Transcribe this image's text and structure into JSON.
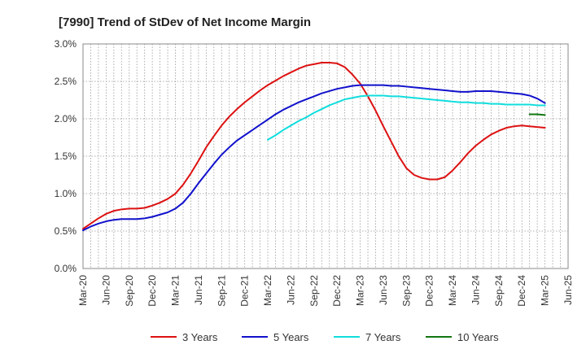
{
  "chart_data": {
    "type": "line",
    "title": "[7990]  Trend of StDev of Net Income Margin",
    "xlabel": "",
    "ylabel": "",
    "x_ticks": [
      "Mar-20",
      "Jun-20",
      "Sep-20",
      "Dec-20",
      "Mar-21",
      "Jun-21",
      "Sep-21",
      "Dec-21",
      "Mar-22",
      "Jun-22",
      "Sep-22",
      "Dec-22",
      "Mar-23",
      "Jun-23",
      "Sep-23",
      "Dec-23",
      "Mar-24",
      "Jun-24",
      "Sep-24",
      "Dec-24",
      "Mar-25",
      "Jun-25"
    ],
    "y_ticks": [
      "0.0%",
      "0.5%",
      "1.0%",
      "1.5%",
      "2.0%",
      "2.5%",
      "3.0%"
    ],
    "ylim": [
      0,
      3.0
    ],
    "grid": true,
    "legend_position": "bottom",
    "series": [
      {
        "name": "3 Years",
        "color": "#dd1111",
        "x": [
          "2020-03",
          "2020-04",
          "2020-05",
          "2020-06",
          "2020-07",
          "2020-08",
          "2020-09",
          "2020-10",
          "2020-11",
          "2020-12",
          "2021-01",
          "2021-02",
          "2021-03",
          "2021-04",
          "2021-05",
          "2021-06",
          "2021-07",
          "2021-08",
          "2021-09",
          "2021-10",
          "2021-11",
          "2021-12",
          "2022-01",
          "2022-02",
          "2022-03",
          "2022-04",
          "2022-05",
          "2022-06",
          "2022-07",
          "2022-08",
          "2022-09",
          "2022-10",
          "2022-11",
          "2022-12",
          "2023-01",
          "2023-02",
          "2023-03",
          "2023-04",
          "2023-05",
          "2023-06",
          "2023-07",
          "2023-08",
          "2023-09",
          "2023-10",
          "2023-11",
          "2023-12",
          "2024-01",
          "2024-02",
          "2024-03",
          "2024-04",
          "2024-05",
          "2024-06",
          "2024-07",
          "2024-08",
          "2024-09",
          "2024-10",
          "2024-11",
          "2024-12",
          "2025-01",
          "2025-02",
          "2025-03"
        ],
        "values": [
          0.53,
          0.6,
          0.67,
          0.73,
          0.77,
          0.79,
          0.8,
          0.8,
          0.81,
          0.84,
          0.88,
          0.93,
          1.0,
          1.12,
          1.27,
          1.44,
          1.62,
          1.77,
          1.91,
          2.03,
          2.13,
          2.22,
          2.3,
          2.38,
          2.45,
          2.51,
          2.57,
          2.62,
          2.67,
          2.71,
          2.73,
          2.75,
          2.75,
          2.74,
          2.69,
          2.59,
          2.47,
          2.3,
          2.11,
          1.9,
          1.7,
          1.5,
          1.34,
          1.25,
          1.21,
          1.19,
          1.19,
          1.22,
          1.31,
          1.42,
          1.54,
          1.64,
          1.72,
          1.79,
          1.84,
          1.88,
          1.9,
          1.91,
          1.9,
          1.89,
          1.88
        ]
      },
      {
        "name": "5 Years",
        "color": "#1111cc",
        "x": [
          "2020-03",
          "2020-04",
          "2020-05",
          "2020-06",
          "2020-07",
          "2020-08",
          "2020-09",
          "2020-10",
          "2020-11",
          "2020-12",
          "2021-01",
          "2021-02",
          "2021-03",
          "2021-04",
          "2021-05",
          "2021-06",
          "2021-07",
          "2021-08",
          "2021-09",
          "2021-10",
          "2021-11",
          "2021-12",
          "2022-01",
          "2022-02",
          "2022-03",
          "2022-04",
          "2022-05",
          "2022-06",
          "2022-07",
          "2022-08",
          "2022-09",
          "2022-10",
          "2022-11",
          "2022-12",
          "2023-01",
          "2023-02",
          "2023-03",
          "2023-04",
          "2023-05",
          "2023-06",
          "2023-07",
          "2023-08",
          "2023-09",
          "2023-10",
          "2023-11",
          "2023-12",
          "2024-01",
          "2024-02",
          "2024-03",
          "2024-04",
          "2024-05",
          "2024-06",
          "2024-07",
          "2024-08",
          "2024-09",
          "2024-10",
          "2024-11",
          "2024-12",
          "2025-01",
          "2025-02",
          "2025-03"
        ],
        "values": [
          0.51,
          0.56,
          0.6,
          0.63,
          0.65,
          0.66,
          0.66,
          0.66,
          0.67,
          0.69,
          0.72,
          0.75,
          0.8,
          0.88,
          1.0,
          1.14,
          1.27,
          1.4,
          1.52,
          1.62,
          1.71,
          1.78,
          1.85,
          1.92,
          1.99,
          2.06,
          2.12,
          2.17,
          2.22,
          2.26,
          2.3,
          2.34,
          2.37,
          2.4,
          2.42,
          2.44,
          2.45,
          2.45,
          2.45,
          2.45,
          2.44,
          2.44,
          2.43,
          2.42,
          2.41,
          2.4,
          2.39,
          2.38,
          2.37,
          2.36,
          2.36,
          2.37,
          2.37,
          2.37,
          2.36,
          2.35,
          2.34,
          2.33,
          2.31,
          2.27,
          2.21
        ]
      },
      {
        "name": "7 Years",
        "color": "#11dddd",
        "x": [
          "2022-03",
          "2022-04",
          "2022-05",
          "2022-06",
          "2022-07",
          "2022-08",
          "2022-09",
          "2022-10",
          "2022-11",
          "2022-12",
          "2023-01",
          "2023-02",
          "2023-03",
          "2023-04",
          "2023-05",
          "2023-06",
          "2023-07",
          "2023-08",
          "2023-09",
          "2023-10",
          "2023-11",
          "2023-12",
          "2024-01",
          "2024-02",
          "2024-03",
          "2024-04",
          "2024-05",
          "2024-06",
          "2024-07",
          "2024-08",
          "2024-09",
          "2024-10",
          "2024-11",
          "2024-12",
          "2025-01",
          "2025-02",
          "2025-03"
        ],
        "values": [
          1.72,
          1.78,
          1.85,
          1.91,
          1.97,
          2.02,
          2.08,
          2.13,
          2.18,
          2.22,
          2.26,
          2.28,
          2.3,
          2.31,
          2.31,
          2.31,
          2.3,
          2.3,
          2.29,
          2.28,
          2.27,
          2.26,
          2.25,
          2.24,
          2.23,
          2.22,
          2.22,
          2.21,
          2.21,
          2.2,
          2.2,
          2.19,
          2.19,
          2.19,
          2.19,
          2.18,
          2.18
        ]
      },
      {
        "name": "10 Years",
        "color": "#117711",
        "x": [
          "2025-01",
          "2025-02",
          "2025-03"
        ],
        "values": [
          2.06,
          2.06,
          2.05
        ]
      }
    ]
  }
}
